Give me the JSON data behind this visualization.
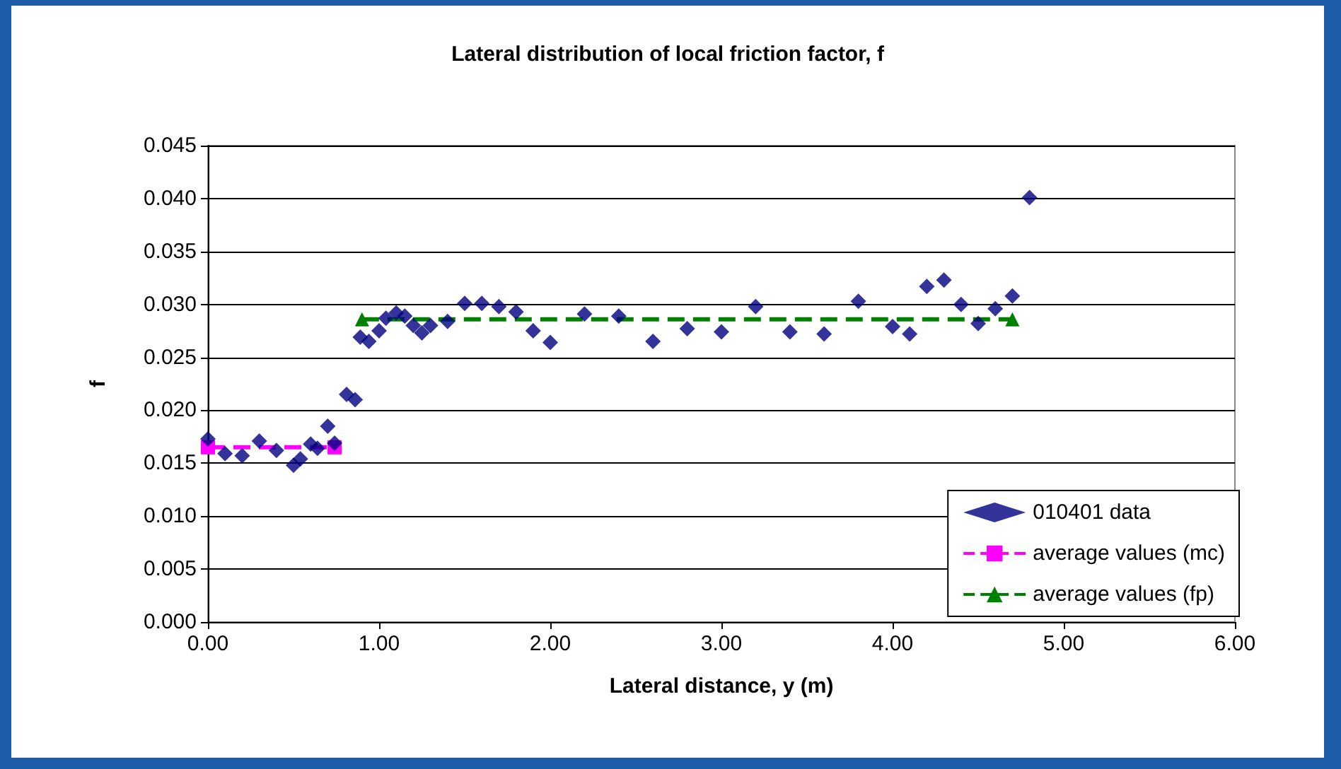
{
  "chart_data": {
    "type": "scatter",
    "title": "Lateral distribution of local friction factor, f",
    "xlabel": "Lateral distance, y (m)",
    "ylabel": "f",
    "xlim": [
      0,
      6
    ],
    "xticks": [
      {
        "value": 0,
        "label": "0.00"
      },
      {
        "value": 1,
        "label": "1.00"
      },
      {
        "value": 2,
        "label": "2.00"
      },
      {
        "value": 3,
        "label": "3.00"
      },
      {
        "value": 4,
        "label": "4.00"
      },
      {
        "value": 5,
        "label": "5.00"
      },
      {
        "value": 6,
        "label": "6.00"
      }
    ],
    "ylim": [
      0,
      0.045
    ],
    "yticks": [
      {
        "value": 0,
        "label": "0.000"
      },
      {
        "value": 0.005,
        "label": "0.005"
      },
      {
        "value": 0.01,
        "label": "0.010"
      },
      {
        "value": 0.015,
        "label": "0.015"
      },
      {
        "value": 0.02,
        "label": "0.020"
      },
      {
        "value": 0.025,
        "label": "0.025"
      },
      {
        "value": 0.03,
        "label": "0.030"
      },
      {
        "value": 0.035,
        "label": "0.035"
      },
      {
        "value": 0.04,
        "label": "0.040"
      },
      {
        "value": 0.045,
        "label": "0.045"
      }
    ],
    "grid": "y",
    "legend": "bottom right",
    "series": [
      {
        "name": "010401 data",
        "marker": "diamond",
        "color": "#000080",
        "x": [
          0,
          0.1,
          0.2,
          0.3,
          0.4,
          0.5,
          0.54,
          0.6,
          0.64,
          0.7,
          0.74,
          0.81,
          0.86,
          0.89,
          0.94,
          1.0,
          1.04,
          1.1,
          1.15,
          1.2,
          1.25,
          1.3,
          1.4,
          1.5,
          1.6,
          1.7,
          1.8,
          1.9,
          2.0,
          2.2,
          2.4,
          2.6,
          2.8,
          3.0,
          3.2,
          3.4,
          3.6,
          3.8,
          4.0,
          4.1,
          4.2,
          4.3,
          4.4,
          4.5,
          4.6,
          4.7,
          4.8
        ],
        "values": [
          0.0173,
          0.0159,
          0.0157,
          0.0171,
          0.0162,
          0.0148,
          0.0154,
          0.0168,
          0.0164,
          0.0185,
          0.0169,
          0.0215,
          0.021,
          0.0269,
          0.0265,
          0.0275,
          0.0287,
          0.0292,
          0.0289,
          0.028,
          0.0273,
          0.028,
          0.0284,
          0.0301,
          0.0301,
          0.0298,
          0.0293,
          0.0275,
          0.0264,
          0.0291,
          0.0289,
          0.0265,
          0.0277,
          0.0274,
          0.0298,
          0.0274,
          0.0272,
          0.0303,
          0.0279,
          0.0272,
          0.0317,
          0.0323,
          0.03,
          0.0282,
          0.0296,
          0.0308,
          0.0401
        ]
      },
      {
        "name": "average values (mc)",
        "type": "line",
        "marker": "square",
        "line_style": "dashed",
        "color": "#ff00ff",
        "x": [
          0,
          0.74
        ],
        "values": [
          0.0165,
          0.0165
        ]
      },
      {
        "name": "average values (fp)",
        "type": "line",
        "marker": "triangle",
        "line_style": "dashed",
        "color": "#008000",
        "x": [
          0.9,
          4.7
        ],
        "values": [
          0.0286,
          0.0286
        ]
      }
    ]
  }
}
